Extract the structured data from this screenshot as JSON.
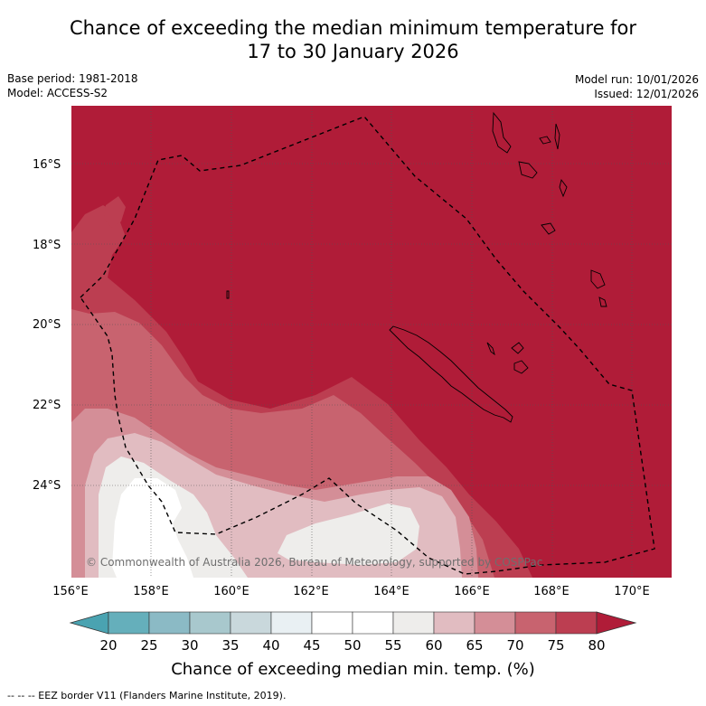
{
  "title_line1": "Chance of exceeding the median minimum temperature for",
  "title_line2": "17 to 30 January 2026",
  "meta_left": {
    "base_period": "Base period: 1981-2018",
    "model": "Model: ACCESS-S2"
  },
  "meta_right": {
    "model_run": "Model run: 10/01/2026",
    "issued": "Issued: 12/01/2026"
  },
  "map": {
    "lat_labels": [
      "16°S",
      "18°S",
      "20°S",
      "22°S",
      "24°S"
    ],
    "lon_labels": [
      "156°E",
      "158°E",
      "160°E",
      "162°E",
      "164°E",
      "166°E",
      "168°E",
      "170°E"
    ],
    "copyright": "© Commonwealth of Australia 2026, Bureau of Meteorology, supported by COSPPac",
    "land_mask_color": "#000000"
  },
  "colorbar": {
    "title": "Chance of exceeding median min. temp. (%)",
    "ticks": [
      "20",
      "25",
      "30",
      "35",
      "40",
      "45",
      "50",
      "55",
      "60",
      "65",
      "70",
      "75",
      "80"
    ],
    "colors": [
      "#65afbb",
      "#8bbac5",
      "#a8c8cd",
      "#c9d8dc",
      "#e9f0f3",
      "#ffffff",
      "#ffffff",
      "#eeedeb",
      "#e1bcc1",
      "#d48e97",
      "#c8636f",
      "#bc3e51"
    ],
    "low_extend_color": "#4aa3b1",
    "high_extend_color": "#b01c38"
  },
  "footnote": "-- -- -- EEZ border V11 (Flanders Marine Institute, 2019)."
}
